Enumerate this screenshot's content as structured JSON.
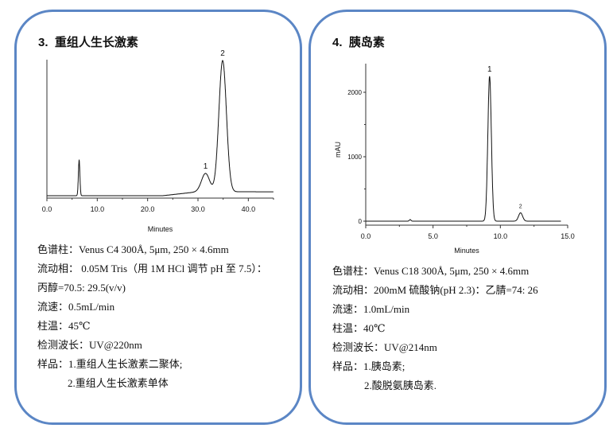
{
  "panels": [
    {
      "number": "3.",
      "title": "重组人生长激素",
      "lines": [
        "色谱柱：Venus C4 300Å, 5μm, 250 × 4.6mm",
        "流动相： 0.05M Tris（用 1M HCl 调节 pH 至 7.5）：",
        "丙醇=70.5: 29.5(v/v)",
        "流速：0.5mL/min",
        "柱温：45℃",
        "检测波长：UV@220nm",
        "样品：1.重组人生长激素二聚体;",
        "2.重组人生长激素单体"
      ]
    },
    {
      "number": "4.",
      "title": "胰岛素",
      "lines": [
        "色谱柱：Venus C18 300Å, 5μm, 250 × 4.6mm",
        "流动相：200mM  硫酸钠(pH 2.3)：乙腈=74: 26",
        "流速：1.0mL/min",
        "柱温：40℃",
        "检测波长：UV@214nm",
        "样品：1.胰岛素;",
        "2.酸脱氨胰岛素."
      ]
    }
  ],
  "colors": {
    "border": "#5b86c5"
  },
  "chart_data": [
    {
      "type": "line",
      "xlabel": "Minutes",
      "ylabel": "",
      "xlim": [
        0,
        45
      ],
      "xticks": [
        "0.0",
        "10.0",
        "20.0",
        "30.0",
        "40.0"
      ],
      "peaks": [
        {
          "label": "",
          "rt": 6.4,
          "height": 0.27,
          "width": 0.15
        },
        {
          "label": "1",
          "rt": 31.5,
          "height": 0.14,
          "width": 0.8
        },
        {
          "label": "2",
          "rt": 34.9,
          "height": 1.0,
          "width": 0.75
        }
      ]
    },
    {
      "type": "line",
      "xlabel": "Minutes",
      "ylabel": "mAU",
      "xlim": [
        0,
        15
      ],
      "ylim": [
        -60,
        2450
      ],
      "xticks": [
        "0.0",
        "5.0",
        "10.0",
        "15.0"
      ],
      "yticks": [
        "0",
        "1000",
        "2000"
      ],
      "peaks": [
        {
          "label": "",
          "rt": 3.3,
          "height": 25,
          "width": 0.06
        },
        {
          "label": "1",
          "rt": 9.2,
          "height": 2250,
          "width": 0.13
        },
        {
          "label": "2",
          "rt": 11.5,
          "height": 130,
          "width": 0.15
        }
      ]
    }
  ]
}
